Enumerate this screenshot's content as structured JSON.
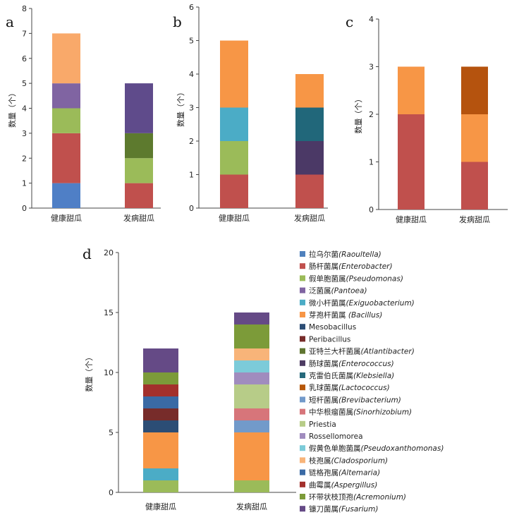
{
  "chart_data": [
    {
      "panel": "a",
      "type": "bar",
      "stacked": true,
      "categories": [
        "健康甜瓜",
        "发病甜瓜"
      ],
      "ylabel": "数量（个）",
      "ylim": [
        0,
        8
      ],
      "yticks": [
        0,
        1,
        2,
        3,
        4,
        5,
        6,
        7,
        8
      ],
      "series": [
        {
          "name": "拉乌尔菌(Raoultella)",
          "color": "#4f7fc6",
          "values": [
            1,
            0
          ]
        },
        {
          "name": "肠杆菌属(Enterobacter)",
          "color": "#c0504d",
          "values": [
            2,
            1
          ]
        },
        {
          "name": "假单胞菌属(Pseudomonas)",
          "color": "#9bbb59",
          "values": [
            1,
            1
          ]
        },
        {
          "name": "亚特兰大杆菌属(Atlantibacter)",
          "color": "#5d7a2e",
          "values": [
            0,
            1
          ]
        },
        {
          "name": "泛菌属(Pantoea)",
          "color": "#8064a2",
          "values": [
            1,
            0
          ]
        },
        {
          "name": "肠球菌属(Enterococcus)",
          "color": "#5f4b8b",
          "values": [
            0,
            2
          ]
        },
        {
          "name": "芽孢杆菌属 (Bacillus)",
          "color": "#f9a96a",
          "values": [
            2,
            0
          ]
        }
      ]
    },
    {
      "panel": "b",
      "type": "bar",
      "stacked": true,
      "categories": [
        "健康甜瓜",
        "发病甜瓜"
      ],
      "ylabel": "数量（个）",
      "ylim": [
        0,
        6
      ],
      "yticks": [
        0,
        1,
        2,
        3,
        4,
        5,
        6
      ],
      "series": [
        {
          "name": "肠杆菌属(Enterobacter)",
          "color": "#c0504d",
          "values": [
            1,
            1
          ]
        },
        {
          "name": "假单胞菌属(Pseudomonas)",
          "color": "#9bbb59",
          "values": [
            1,
            0
          ]
        },
        {
          "name": "肠球菌属(Enterococcus)",
          "color": "#4b3966",
          "values": [
            0,
            1
          ]
        },
        {
          "name": "微小杆菌属(Exiguobacterium)",
          "color": "#4bacc6",
          "values": [
            1,
            0
          ]
        },
        {
          "name": "克雷伯氏菌属(Klebsiella)",
          "color": "#21677a",
          "values": [
            0,
            1
          ]
        },
        {
          "name": "芽孢杆菌属 (Bacillus)",
          "color": "#f79646",
          "values": [
            2,
            1
          ]
        }
      ]
    },
    {
      "panel": "c",
      "type": "bar",
      "stacked": true,
      "categories": [
        "健康甜瓜",
        "发病甜瓜"
      ],
      "ylabel": "数量（个）",
      "ylim": [
        0,
        4
      ],
      "yticks": [
        0,
        1,
        2,
        3,
        4
      ],
      "series": [
        {
          "name": "肠杆菌属(Enterobacter)",
          "color": "#c0504d",
          "values": [
            2,
            1
          ]
        },
        {
          "name": "芽孢杆菌属 (Bacillus)",
          "color": "#f79646",
          "values": [
            1,
            1
          ]
        },
        {
          "name": "乳球菌属(Lactococcus)",
          "color": "#b5530e",
          "values": [
            0,
            1
          ]
        }
      ]
    },
    {
      "panel": "d",
      "type": "bar",
      "stacked": true,
      "categories": [
        "健康甜瓜",
        "发病甜瓜"
      ],
      "ylabel": "数量（个）",
      "ylim": [
        0,
        20
      ],
      "yticks": [
        0,
        5,
        10,
        15,
        20
      ],
      "series": [
        {
          "name": "拉乌尔菌(Raoultella)",
          "color": "#4f81bd",
          "values": [
            0,
            0
          ]
        },
        {
          "name": "肠杆菌属(Enterobacter)",
          "color": "#c0504d",
          "values": [
            0,
            0
          ]
        },
        {
          "name": "假单胞菌属(Pseudomonas)",
          "color": "#9bbb59",
          "values": [
            1,
            1
          ]
        },
        {
          "name": "泛菌属(Pantoea)",
          "color": "#8064a2",
          "values": [
            0,
            0
          ]
        },
        {
          "name": "微小杆菌属(Exiguobacterium)",
          "color": "#4bacc6",
          "values": [
            1,
            0
          ]
        },
        {
          "name": "芽孢杆菌属 (Bacillus)",
          "color": "#f79646",
          "values": [
            3,
            4
          ]
        },
        {
          "name": "Mesobacillus",
          "color": "#2c4d75",
          "values": [
            1,
            0
          ]
        },
        {
          "name": "Peribacillus",
          "color": "#772c2a",
          "values": [
            1,
            0
          ]
        },
        {
          "name": "亚特兰大杆菌属(Atlantibacter)",
          "color": "#5f7530",
          "values": [
            0,
            0
          ]
        },
        {
          "name": "肠球菌属(Enterococcus)",
          "color": "#4d3b62",
          "values": [
            0,
            0
          ]
        },
        {
          "name": "克雷伯氏菌属(Klebsiella)",
          "color": "#276a7c",
          "values": [
            0,
            0
          ]
        },
        {
          "name": "乳球菌属(Lactococcus)",
          "color": "#b65708",
          "values": [
            0,
            0
          ]
        },
        {
          "name": "短杆菌属(Brevibacterium)",
          "color": "#729aca",
          "values": [
            0,
            1
          ]
        },
        {
          "name": "中华根瘤菌属(Sinorhizobium)",
          "color": "#d7757a",
          "values": [
            0,
            1
          ]
        },
        {
          "name": "Priestia",
          "color": "#b7cc88",
          "values": [
            0,
            2
          ]
        },
        {
          "name": "Rossellomorea",
          "color": "#a08cbe",
          "values": [
            0,
            1
          ]
        },
        {
          "name": "假黄色单胞菌属(Pseudoxanthomonas)",
          "color": "#7ccbd9",
          "values": [
            0,
            1
          ]
        },
        {
          "name": "枝孢属(Cladosporium)",
          "color": "#f8b479",
          "values": [
            0,
            1
          ]
        },
        {
          "name": "链格孢属(Altemaria)",
          "color": "#3a6aa5",
          "values": [
            1,
            0
          ]
        },
        {
          "name": "曲霉属(Aspergillus)",
          "color": "#a3302c",
          "values": [
            1,
            0
          ]
        },
        {
          "name": "环带状枝顶孢(Acremonium)",
          "color": "#7c9b39",
          "values": [
            1,
            2
          ]
        },
        {
          "name": "镰刀菌属(Fusarium)",
          "color": "#654a86",
          "values": [
            2,
            1
          ]
        }
      ]
    }
  ],
  "panel_labels": [
    "a",
    "b",
    "c",
    "d"
  ],
  "legend": [
    {
      "cn": "拉乌尔菌",
      "latin": "(Raoultella)",
      "italic": true,
      "color": "#4f81bd"
    },
    {
      "cn": "肠杆菌属",
      "latin": "(Enterobacter)",
      "italic": true,
      "color": "#c0504d"
    },
    {
      "cn": "假单胞菌属",
      "latin": "(Pseudomonas)",
      "italic": true,
      "color": "#9bbb59"
    },
    {
      "cn": "泛菌属",
      "latin": "(Pantoea)",
      "italic": true,
      "color": "#8064a2"
    },
    {
      "cn": "微小杆菌属",
      "latin": "(Exiguobacterium)",
      "italic": true,
      "color": "#4bacc6"
    },
    {
      "cn": "芽孢杆菌属 ",
      "latin": "(Bacillus)",
      "italic": true,
      "color": "#f79646"
    },
    {
      "cn": "",
      "latin": "Mesobacillus",
      "italic": false,
      "color": "#2c4d75"
    },
    {
      "cn": "",
      "latin": "Peribacillus",
      "italic": false,
      "color": "#772c2a"
    },
    {
      "cn": "亚特兰大杆菌属",
      "latin": "(Atlantibacter)",
      "italic": true,
      "color": "#5f7530"
    },
    {
      "cn": "肠球菌属",
      "latin": "(Enterococcus)",
      "italic": true,
      "color": "#4d3b62"
    },
    {
      "cn": "克雷伯氏菌属",
      "latin": "(Klebsiella)",
      "italic": true,
      "color": "#276a7c"
    },
    {
      "cn": "乳球菌属",
      "latin": "(Lactococcus)",
      "italic": true,
      "color": "#b65708"
    },
    {
      "cn": "短杆菌属",
      "latin": "(Brevibacterium)",
      "italic": true,
      "color": "#729aca"
    },
    {
      "cn": "中华根瘤菌属",
      "latin": "(Sinorhizobium)",
      "italic": true,
      "color": "#d7757a"
    },
    {
      "cn": "",
      "latin": "Priestia",
      "italic": false,
      "color": "#b7cc88"
    },
    {
      "cn": "",
      "latin": "Rossellomorea",
      "italic": false,
      "color": "#a08cbe"
    },
    {
      "cn": "假黄色单胞菌属",
      "latin": "(Pseudoxanthomonas)",
      "italic": true,
      "color": "#7ccbd9"
    },
    {
      "cn": "枝孢属",
      "latin": "(Cladosporium)",
      "italic": true,
      "color": "#f8b479"
    },
    {
      "cn": "链格孢属",
      "latin": "(Altemaria)",
      "italic": true,
      "color": "#3a6aa5"
    },
    {
      "cn": "曲霉属",
      "latin": "(Aspergillus)",
      "italic": true,
      "color": "#a3302c"
    },
    {
      "cn": "环带状枝顶孢",
      "latin": "(Acremonium)",
      "italic": true,
      "color": "#7c9b39"
    },
    {
      "cn": "镰刀菌属",
      "latin": "(Fusarium)",
      "italic": true,
      "color": "#654a86"
    }
  ]
}
